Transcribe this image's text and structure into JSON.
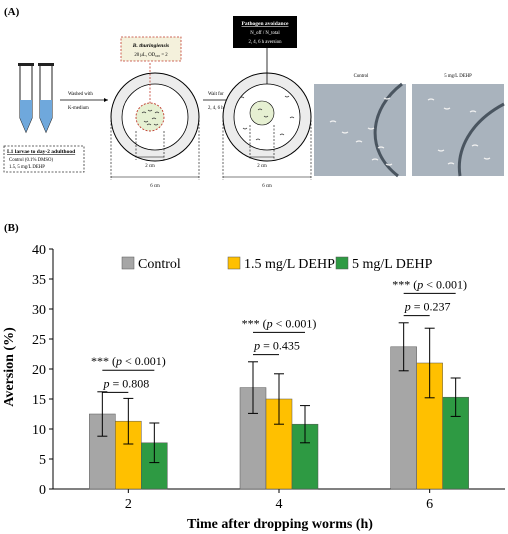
{
  "figure": {
    "panel_a_label": "(A)",
    "panel_b_label": "(B)"
  },
  "schematic": {
    "protocol_line1": "L1 larvae to day-2 adulthood",
    "protocol_line2": "Control (0.1% DMSO)",
    "protocol_line3": "1.5, 5 mg/L DEHP",
    "wash_line1": "Washed with",
    "wash_line2": "K-medium",
    "bt_title": "B. thuringiensis",
    "bt_conc": "20 μL, OD₆₀₀ = 2",
    "wait_line1": "Wait for",
    "wait_line2": "2, 4, 6 h",
    "avoid_title": "Pathogen avoidance",
    "avoid_formula": "N_off / N_total",
    "avoid_times": "2, 4, 6 h aversion",
    "inner_dia_1": "2 cm",
    "outer_dia_1": "6 cm",
    "inner_dia_2": "2 cm",
    "outer_dia_2": "6 cm",
    "photo_label_1": "Control",
    "photo_label_2": "5 mg/L DEHP"
  },
  "chart_data": {
    "type": "bar",
    "categories": [
      "2",
      "4",
      "6"
    ],
    "xlabel": "Time after dropping worms (h)",
    "ylabel": "Aversion (%)",
    "ylim": [
      0,
      40
    ],
    "yticks": [
      0,
      5,
      10,
      15,
      20,
      25,
      30,
      35,
      40
    ],
    "grid": false,
    "legend_position": "top-center",
    "series": [
      {
        "name": "Control",
        "color": "#a6a6a6",
        "values": [
          12.5,
          16.9,
          23.7
        ],
        "errors": [
          3.7,
          4.3,
          4.0
        ]
      },
      {
        "name": "1.5 mg/L DEHP",
        "color": "#ffc000",
        "values": [
          11.3,
          15.0,
          21.0
        ],
        "errors": [
          3.8,
          4.2,
          5.8
        ]
      },
      {
        "name": "5 mg/L DEHP",
        "color": "#2e9a43",
        "values": [
          7.7,
          10.8,
          15.3
        ],
        "errors": [
          3.3,
          3.1,
          3.2
        ]
      }
    ],
    "annotations": [
      {
        "text_prefix": "*** (",
        "text_p": "p",
        "text_rest": " < 0.001)",
        "group": 0,
        "y": 19.8
      },
      {
        "text_prefix": "",
        "text_p": "p",
        "text_rest": " = 0.808",
        "group": 0,
        "y": 16.1
      },
      {
        "text_prefix": "*** (",
        "text_p": "p",
        "text_rest": " < 0.001)",
        "group": 1,
        "y": 26.1
      },
      {
        "text_prefix": "",
        "text_p": "p",
        "text_rest": " = 0.435",
        "group": 1,
        "y": 22.4
      },
      {
        "text_prefix": "*** (",
        "text_p": "p",
        "text_rest": " < 0.001)",
        "group": 2,
        "y": 32.6
      },
      {
        "text_prefix": "",
        "text_p": "p",
        "text_rest": " = 0.237",
        "group": 2,
        "y": 28.9
      }
    ]
  }
}
